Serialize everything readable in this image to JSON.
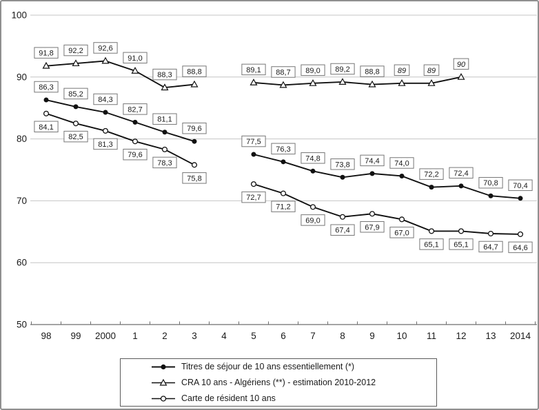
{
  "chart_data": {
    "type": "line",
    "title": "",
    "xlabel": "",
    "ylabel": "",
    "grid": true,
    "legend_position": "bottom",
    "categories": [
      "98",
      "99",
      "2000",
      "1",
      "2",
      "3",
      "4",
      "5",
      "6",
      "7",
      "8",
      "9",
      "10",
      "11",
      "12",
      "13",
      "2014"
    ],
    "y_axis": {
      "min": 50,
      "max": 100,
      "ticks": [
        100,
        90,
        80,
        70,
        60,
        50
      ]
    },
    "gap_note": "no data at category 4 (year 2004); all series lines break there",
    "series": [
      {
        "name": "Titres de séjour de 10 ans essentiellement (*)",
        "marker": "filled-circle",
        "label_position": "above",
        "points": [
          {
            "x": 0,
            "y": 86.3,
            "label": "86,3"
          },
          {
            "x": 1,
            "y": 85.2,
            "label": "85,2"
          },
          {
            "x": 2,
            "y": 84.3,
            "label": "84,3"
          },
          {
            "x": 3,
            "y": 82.7,
            "label": "82,7"
          },
          {
            "x": 4,
            "y": 81.1,
            "label": "81,1"
          },
          {
            "x": 5,
            "y": 79.6,
            "label": "79,6"
          },
          {
            "x": 7,
            "y": 77.5,
            "label": "77,5"
          },
          {
            "x": 8,
            "y": 76.3,
            "label": "76,3"
          },
          {
            "x": 9,
            "y": 74.8,
            "label": "74,8"
          },
          {
            "x": 10,
            "y": 73.8,
            "label": "73,8"
          },
          {
            "x": 11,
            "y": 74.4,
            "label": "74,4"
          },
          {
            "x": 12,
            "y": 74.0,
            "label": "74,0"
          },
          {
            "x": 13,
            "y": 72.2,
            "label": "72,2"
          },
          {
            "x": 14,
            "y": 72.4,
            "label": "72,4"
          },
          {
            "x": 15,
            "y": 70.8,
            "label": "70,8"
          },
          {
            "x": 16,
            "y": 70.4,
            "label": "70,4"
          }
        ]
      },
      {
        "name": "CRA 10 ans - Algériens (**) - estimation 2010-2012",
        "marker": "open-triangle",
        "label_position": "above",
        "points": [
          {
            "x": 0,
            "y": 91.8,
            "label": "91,8"
          },
          {
            "x": 1,
            "y": 92.2,
            "label": "92,2"
          },
          {
            "x": 2,
            "y": 92.6,
            "label": "92,6"
          },
          {
            "x": 3,
            "y": 91.0,
            "label": "91,0"
          },
          {
            "x": 4,
            "y": 88.3,
            "label": "88,3"
          },
          {
            "x": 5,
            "y": 88.8,
            "label": "88,8"
          },
          {
            "x": 7,
            "y": 89.1,
            "label": "89,1"
          },
          {
            "x": 8,
            "y": 88.7,
            "label": "88,7"
          },
          {
            "x": 9,
            "y": 89.0,
            "label": "89,0"
          },
          {
            "x": 10,
            "y": 89.2,
            "label": "89,2"
          },
          {
            "x": 11,
            "y": 88.8,
            "label": "88,8"
          },
          {
            "x": 12,
            "y": 89,
            "label": "89",
            "italic": true
          },
          {
            "x": 13,
            "y": 89,
            "label": "89",
            "italic": true
          },
          {
            "x": 14,
            "y": 90,
            "label": "90",
            "italic": true
          }
        ]
      },
      {
        "name": "Carte de résident 10 ans",
        "marker": "open-circle",
        "label_position": "below",
        "points": [
          {
            "x": 0,
            "y": 84.1,
            "label": "84,1"
          },
          {
            "x": 1,
            "y": 82.5,
            "label": "82,5"
          },
          {
            "x": 2,
            "y": 81.3,
            "label": "81,3"
          },
          {
            "x": 3,
            "y": 79.6,
            "label": "79,6"
          },
          {
            "x": 4,
            "y": 78.3,
            "label": "78,3"
          },
          {
            "x": 5,
            "y": 75.8,
            "label": "75,8"
          },
          {
            "x": 7,
            "y": 72.7,
            "label": "72,7"
          },
          {
            "x": 8,
            "y": 71.2,
            "label": "71,2"
          },
          {
            "x": 9,
            "y": 69.0,
            "label": "69,0"
          },
          {
            "x": 10,
            "y": 67.4,
            "label": "67,4"
          },
          {
            "x": 11,
            "y": 67.9,
            "label": "67,9"
          },
          {
            "x": 12,
            "y": 67.0,
            "label": "67,0"
          },
          {
            "x": 13,
            "y": 65.1,
            "label": "65,1"
          },
          {
            "x": 14,
            "y": 65.1,
            "label": "65,1"
          },
          {
            "x": 15,
            "y": 64.7,
            "label": "64,7"
          },
          {
            "x": 16,
            "y": 64.6,
            "label": "64,6"
          }
        ]
      }
    ]
  },
  "colors": {
    "series_line": "#111111",
    "marker_fill_open": "#ffffff",
    "grid": "#c4c4c4",
    "axis": "#6e6e6e",
    "label_box_bg": "#ffffff",
    "label_box_border": "#767676",
    "text": "#1a1a1a"
  }
}
